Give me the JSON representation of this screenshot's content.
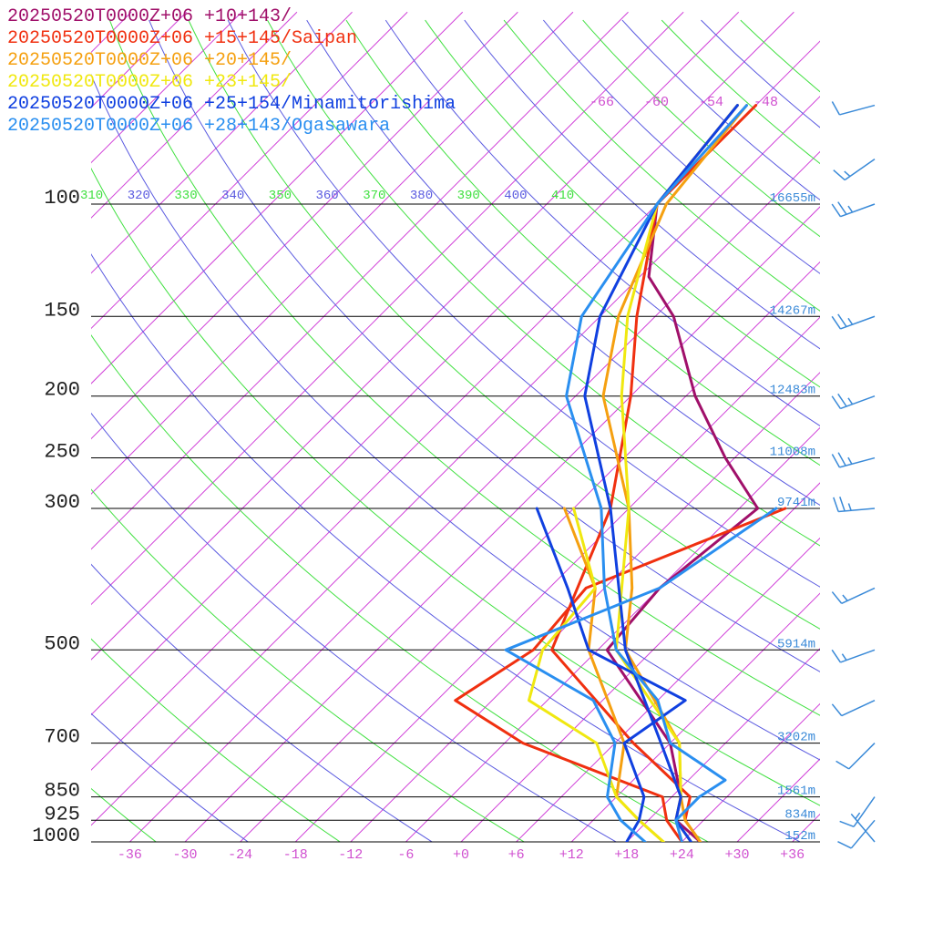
{
  "legend": [
    {
      "label": "20250520T0000Z+06 +10+143/",
      "color": "#a0106a"
    },
    {
      "label": "20250520T0000Z+06 +15+145/Saipan",
      "color": "#f03010"
    },
    {
      "label": "20250520T0000Z+06 +20+145/",
      "color": "#f5a010"
    },
    {
      "label": "20250520T0000Z+06 +23+145/",
      "color": "#f0e810"
    },
    {
      "label": "20250520T0000Z+06 +25+154/Minamitorishima",
      "color": "#1040e0"
    },
    {
      "label": "20250520T0000Z+06 +28+143/Ogasawara",
      "color": "#2a8ff0"
    }
  ],
  "chart_data": {
    "type": "line",
    "title": "",
    "xlabel": "",
    "ylabel": "",
    "y_scale": "log",
    "pressure_levels": [
      100,
      150,
      200,
      250,
      300,
      500,
      700,
      850,
      925,
      1000
    ],
    "heights": [
      {
        "p": 100,
        "label": "16655m"
      },
      {
        "p": 150,
        "label": "14267m"
      },
      {
        "p": 200,
        "label": "12483m"
      },
      {
        "p": 250,
        "label": "11008m"
      },
      {
        "p": 300,
        "label": "9741m"
      },
      {
        "p": 500,
        "label": "5914m"
      },
      {
        "p": 700,
        "label": "3202m"
      },
      {
        "p": 850,
        "label": "1561m"
      },
      {
        "p": 925,
        "label": "834m"
      },
      {
        "p": 1000,
        "label": "152m"
      }
    ],
    "x_ticks": [
      -36,
      -30,
      -24,
      -18,
      -12,
      -6,
      0,
      6,
      12,
      18,
      24,
      30,
      36
    ],
    "x_tick_labels": [
      "-36",
      "-30",
      "-24",
      "-18",
      "-12",
      "-6",
      "+0",
      "+6",
      "+12",
      "+18",
      "+24",
      "+30",
      "+36"
    ],
    "isotherm_labels": [
      {
        "t": -66,
        "label": "-66"
      },
      {
        "t": -60,
        "label": "-60"
      },
      {
        "t": -54,
        "label": "-54"
      },
      {
        "t": -48,
        "label": "-48"
      }
    ],
    "theta_labels": [
      {
        "label": "310",
        "kind": "dry"
      },
      {
        "label": "320",
        "kind": "moist"
      },
      {
        "label": "330",
        "kind": "dry"
      },
      {
        "label": "340",
        "kind": "moist"
      },
      {
        "label": "350",
        "kind": "dry"
      },
      {
        "label": "360",
        "kind": "moist"
      },
      {
        "label": "370",
        "kind": "dry"
      },
      {
        "label": "380",
        "kind": "moist"
      },
      {
        "label": "390",
        "kind": "dry"
      },
      {
        "label": "400",
        "kind": "moist"
      },
      {
        "label": "410",
        "kind": "dry"
      }
    ],
    "series": [
      {
        "color": "#a0106a",
        "temperature": [
          [
            1000,
            26
          ],
          [
            925,
            21
          ],
          [
            850,
            19
          ],
          [
            700,
            12
          ],
          [
            500,
            -5
          ],
          [
            400,
            -6
          ],
          [
            300,
            -4
          ],
          [
            250,
            -13
          ],
          [
            200,
            -23
          ],
          [
            150,
            -34
          ],
          [
            130,
            -41
          ],
          [
            100,
            -48
          ],
          [
            70,
            -50
          ]
        ],
        "dewpoint": []
      },
      {
        "color": "#f03010",
        "temperature": [
          [
            1000,
            26
          ],
          [
            925,
            22
          ],
          [
            850,
            20
          ],
          [
            700,
            8
          ],
          [
            500,
            -11
          ],
          [
            300,
            -20
          ],
          [
            200,
            -30
          ],
          [
            150,
            -38
          ],
          [
            100,
            -48
          ],
          [
            70,
            -48
          ]
        ],
        "dewpoint": [
          [
            1000,
            24
          ],
          [
            925,
            20
          ],
          [
            850,
            17
          ],
          [
            700,
            -4
          ],
          [
            600,
            -16
          ],
          [
            500,
            -13
          ],
          [
            400,
            -14
          ],
          [
            300,
            -1
          ]
        ]
      },
      {
        "color": "#f5a010",
        "temperature": [
          [
            1000,
            26
          ],
          [
            925,
            22
          ],
          [
            850,
            19
          ],
          [
            700,
            13
          ],
          [
            500,
            -3
          ],
          [
            400,
            -9
          ],
          [
            300,
            -18
          ],
          [
            200,
            -33
          ],
          [
            150,
            -40
          ],
          [
            100,
            -47
          ],
          [
            70,
            -49
          ]
        ],
        "dewpoint": [
          [
            1000,
            22
          ],
          [
            925,
            17
          ],
          [
            850,
            12
          ],
          [
            700,
            7
          ],
          [
            500,
            -7
          ],
          [
            400,
            -13
          ],
          [
            300,
            -25
          ]
        ]
      },
      {
        "color": "#f0e810",
        "temperature": [
          [
            1000,
            25
          ],
          [
            925,
            21
          ],
          [
            850,
            19
          ],
          [
            700,
            13
          ],
          [
            500,
            -4
          ],
          [
            300,
            -18
          ],
          [
            200,
            -31
          ],
          [
            150,
            -39
          ],
          [
            100,
            -48
          ],
          [
            70,
            -50
          ]
        ],
        "dewpoint": [
          [
            1000,
            22
          ],
          [
            925,
            17
          ],
          [
            850,
            12
          ],
          [
            700,
            4
          ],
          [
            600,
            -8
          ],
          [
            500,
            -12
          ],
          [
            400,
            -13
          ],
          [
            300,
            -24
          ]
        ]
      },
      {
        "color": "#1040e0",
        "temperature": [
          [
            1000,
            25
          ],
          [
            925,
            21
          ],
          [
            850,
            19
          ],
          [
            700,
            11
          ],
          [
            500,
            -3
          ],
          [
            300,
            -20
          ],
          [
            200,
            -35
          ],
          [
            150,
            -42
          ],
          [
            100,
            -48
          ],
          [
            70,
            -50
          ]
        ],
        "dewpoint": [
          [
            1000,
            18
          ],
          [
            925,
            17
          ],
          [
            850,
            15
          ],
          [
            700,
            7
          ],
          [
            600,
            9
          ],
          [
            500,
            -7
          ],
          [
            400,
            -16
          ],
          [
            300,
            -28
          ]
        ]
      },
      {
        "color": "#2a8ff0",
        "temperature": [
          [
            1000,
            24
          ],
          [
            925,
            21
          ],
          [
            850,
            21
          ],
          [
            800,
            22
          ],
          [
            700,
            12
          ],
          [
            600,
            6
          ],
          [
            500,
            -4
          ],
          [
            400,
            -12
          ],
          [
            300,
            -21
          ],
          [
            200,
            -37
          ],
          [
            150,
            -44
          ],
          [
            100,
            -48
          ],
          [
            70,
            -49
          ]
        ],
        "dewpoint": [
          [
            1000,
            20
          ],
          [
            925,
            15
          ],
          [
            850,
            11
          ],
          [
            700,
            6
          ],
          [
            600,
            -1
          ],
          [
            500,
            -16
          ],
          [
            400,
            -6
          ],
          [
            300,
            -2
          ]
        ]
      }
    ],
    "wind_barbs": [
      {
        "p": 70,
        "speed": 10,
        "dir": 255
      },
      {
        "p": 85,
        "speed": 15,
        "dir": 235
      },
      {
        "p": 100,
        "speed": 25,
        "dir": 250
      },
      {
        "p": 150,
        "speed": 25,
        "dir": 250
      },
      {
        "p": 200,
        "speed": 25,
        "dir": 250
      },
      {
        "p": 250,
        "speed": 25,
        "dir": 255
      },
      {
        "p": 300,
        "speed": 25,
        "dir": 265
      },
      {
        "p": 400,
        "speed": 15,
        "dir": 245
      },
      {
        "p": 500,
        "speed": 15,
        "dir": 250
      },
      {
        "p": 600,
        "speed": 10,
        "dir": 245
      },
      {
        "p": 700,
        "speed": 10,
        "dir": 225
      },
      {
        "p": 850,
        "speed": 10,
        "dir": 215
      },
      {
        "p": 925,
        "speed": 10,
        "dir": 220
      },
      {
        "p": 1000,
        "speed": 5,
        "dir": 320
      }
    ],
    "grid_colors": {
      "isotherm": "#d040d8",
      "dry_adiabat": "#5a5ae0",
      "moist_adiabat": "#40e040",
      "isobar": "#000000",
      "axis_label": "#d050d0",
      "height_label": "#3a8ad8",
      "barb": "#3a8ad8"
    }
  }
}
